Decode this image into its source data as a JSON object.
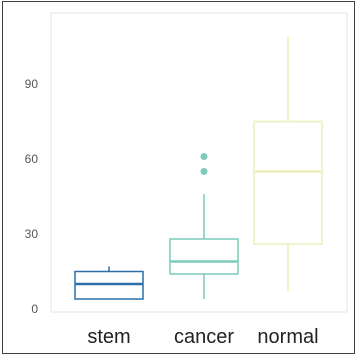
{
  "chart_data": {
    "type": "box",
    "title": "",
    "xlabel": "",
    "ylabel": "",
    "ylim": [
      0,
      110
    ],
    "yticks": [
      "0",
      "30",
      "60",
      "90"
    ],
    "ytick_values": [
      0,
      30,
      60,
      90
    ],
    "grid": false,
    "categories": [
      "stem",
      "cancer",
      "normal"
    ],
    "boxes": [
      {
        "category": "stem",
        "color": "#2b6ea8",
        "whisker_low": 4,
        "q1": 4,
        "median": 10,
        "q3": 15,
        "whisker_high": 17,
        "outliers": []
      },
      {
        "category": "cancer",
        "color": "#7ecbbb",
        "whisker_low": 4,
        "q1": 14,
        "median": 19,
        "q3": 28,
        "whisker_high": 46,
        "outliers": [
          55,
          61
        ]
      },
      {
        "category": "normal",
        "color": "#ecefbc",
        "whisker_low": 7,
        "q1": 26,
        "median": 55,
        "q3": 75,
        "whisker_high": 109,
        "outliers": []
      }
    ]
  }
}
